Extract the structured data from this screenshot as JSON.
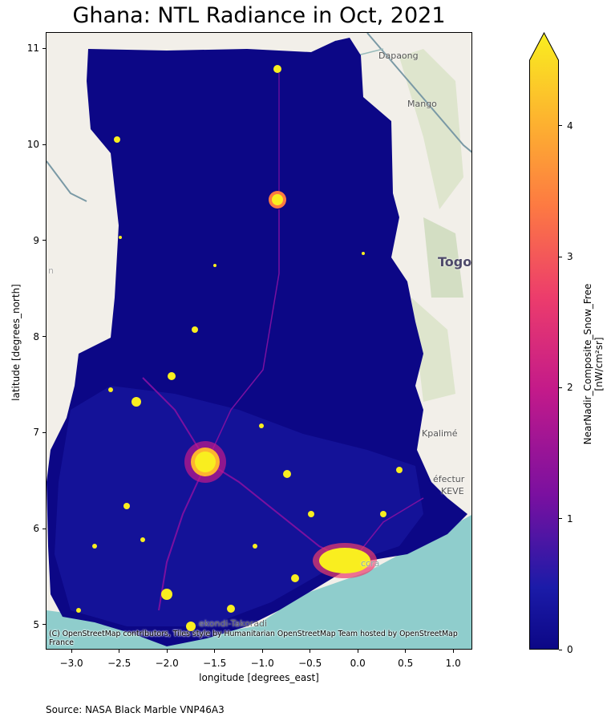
{
  "title": "Ghana: NTL Radiance in Oct, 2021",
  "x_axis": {
    "label": "longitude [degrees_east]",
    "ticks": [
      "−3.0",
      "−2.5",
      "−2.0",
      "−1.5",
      "−1.0",
      "−0.5",
      "0.0",
      "0.5",
      "1.0"
    ],
    "range": [
      -3.27,
      1.2
    ]
  },
  "y_axis": {
    "label": "latitude [degrees_north]",
    "ticks": [
      "5",
      "6",
      "7",
      "8",
      "9",
      "10",
      "11"
    ],
    "range": [
      4.74,
      11.17
    ]
  },
  "colorbar": {
    "label_line1": "NearNadir_Composite_Snow_Free",
    "label_line2": "[nW/cm²sr]",
    "ticks": [
      "0",
      "1",
      "2",
      "3",
      "4"
    ],
    "range": [
      0,
      4.5
    ],
    "extend": "max",
    "colors": [
      "#0c0786",
      "#1b1ba8",
      "#7a10a0",
      "#c31a8a",
      "#ec3c6c",
      "#fd7a42",
      "#fdb42f",
      "#f9ee1f"
    ]
  },
  "map_labels": {
    "dapaong": "Dapaong",
    "mango": "Mango",
    "togo": "Togo",
    "kpalime": "Kpalimé",
    "prefecture": "éfectur",
    "keve": "KEVE",
    "accra": "ccra",
    "sekondi": "ekondi-Takoradi",
    "west_cut": "n"
  },
  "attribution": "(C) OpenStreetMap contributors, Tiles style by Humanitarian OpenStreetMap Team hosted by OpenStreetMap France",
  "source": "Source: NASA Black Marble VNP46A3",
  "colors": {
    "background_dark": "#0c0786",
    "sea": "#8fcdcc",
    "land": "#f2efe9",
    "bright": "#f9ee1f"
  }
}
